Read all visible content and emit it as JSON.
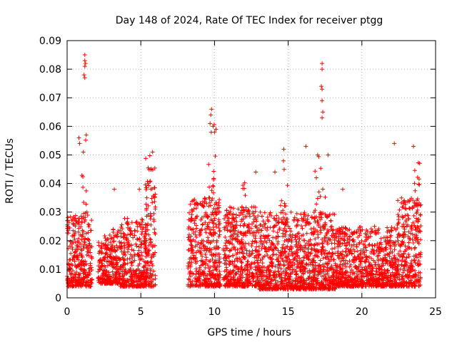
{
  "chart_data": {
    "type": "scatter",
    "title": "Day 148 of 2024, Rate Of TEC Index for receiver ptgg",
    "xlabel": "GPS time / hours",
    "ylabel": "ROTI / TECUs",
    "xlim": [
      0,
      25
    ],
    "ylim": [
      0,
      0.09
    ],
    "grid": true,
    "marker": "+",
    "color": "#ff0000",
    "x_ticks": [
      "0",
      "5",
      "10",
      "15",
      "20",
      "25"
    ],
    "y_ticks": [
      "0",
      "0.01",
      "0.02",
      "0.03",
      "0.04",
      "0.05",
      "0.06",
      "0.07",
      "0.08",
      "0.09"
    ],
    "clusters": [
      {
        "x": [
          0.0,
          1.7
        ],
        "y": [
          0.004,
          0.03
        ],
        "dense": true
      },
      {
        "x": [
          1.0,
          1.3
        ],
        "y": [
          0.005,
          0.057
        ],
        "dense": false
      },
      {
        "x": [
          2.1,
          3.0
        ],
        "y": [
          0.005,
          0.022
        ],
        "dense": true
      },
      {
        "x": [
          3.0,
          3.6
        ],
        "y": [
          0.005,
          0.025
        ],
        "dense": true
      },
      {
        "x": [
          3.6,
          5.4
        ],
        "y": [
          0.004,
          0.028
        ],
        "dense": true
      },
      {
        "x": [
          5.3,
          6.0
        ],
        "y": [
          0.004,
          0.05
        ],
        "dense": true
      },
      {
        "x": [
          8.2,
          10.4
        ],
        "y": [
          0.004,
          0.035
        ],
        "dense": true
      },
      {
        "x": [
          9.5,
          10.2
        ],
        "y": [
          0.005,
          0.066
        ],
        "dense": false
      },
      {
        "x": [
          10.6,
          13.0
        ],
        "y": [
          0.004,
          0.032
        ],
        "dense": true
      },
      {
        "x": [
          11.9,
          12.4
        ],
        "y": [
          0.005,
          0.046
        ],
        "dense": false
      },
      {
        "x": [
          13.0,
          16.0
        ],
        "y": [
          0.003,
          0.03
        ],
        "dense": true
      },
      {
        "x": [
          14.4,
          15.1
        ],
        "y": [
          0.005,
          0.048
        ],
        "dense": false
      },
      {
        "x": [
          16.0,
          18.2
        ],
        "y": [
          0.003,
          0.03
        ],
        "dense": true
      },
      {
        "x": [
          16.8,
          17.6
        ],
        "y": [
          0.005,
          0.05
        ],
        "dense": false
      },
      {
        "x": [
          18.2,
          20.2
        ],
        "y": [
          0.004,
          0.025
        ],
        "dense": true
      },
      {
        "x": [
          20.2,
          22.4
        ],
        "y": [
          0.004,
          0.025
        ],
        "dense": true
      },
      {
        "x": [
          22.4,
          24.0
        ],
        "y": [
          0.004,
          0.035
        ],
        "dense": true
      },
      {
        "x": [
          23.5,
          24.0
        ],
        "y": [
          0.02,
          0.048
        ],
        "dense": false
      }
    ],
    "outliers": [
      [
        1.2,
        0.085
      ],
      [
        1.2,
        0.083
      ],
      [
        1.25,
        0.082
      ],
      [
        1.2,
        0.081
      ],
      [
        1.15,
        0.078
      ],
      [
        1.2,
        0.077
      ],
      [
        1.3,
        0.057
      ],
      [
        0.8,
        0.056
      ],
      [
        0.85,
        0.054
      ],
      [
        1.1,
        0.051
      ],
      [
        9.8,
        0.066
      ],
      [
        9.75,
        0.064
      ],
      [
        9.7,
        0.061
      ],
      [
        9.9,
        0.06
      ],
      [
        10.1,
        0.059
      ],
      [
        10.0,
        0.058
      ],
      [
        17.3,
        0.082
      ],
      [
        17.3,
        0.08
      ],
      [
        17.25,
        0.074
      ],
      [
        17.3,
        0.073
      ],
      [
        17.3,
        0.069
      ],
      [
        17.35,
        0.065
      ],
      [
        17.3,
        0.063
      ],
      [
        17.0,
        0.05
      ],
      [
        17.7,
        0.05
      ],
      [
        16.2,
        0.053
      ],
      [
        14.7,
        0.052
      ],
      [
        22.2,
        0.054
      ],
      [
        23.5,
        0.053
      ],
      [
        3.2,
        0.038
      ],
      [
        4.9,
        0.038
      ],
      [
        5.8,
        0.051
      ],
      [
        12.8,
        0.044
      ],
      [
        14.1,
        0.044
      ],
      [
        18.7,
        0.038
      ]
    ]
  }
}
